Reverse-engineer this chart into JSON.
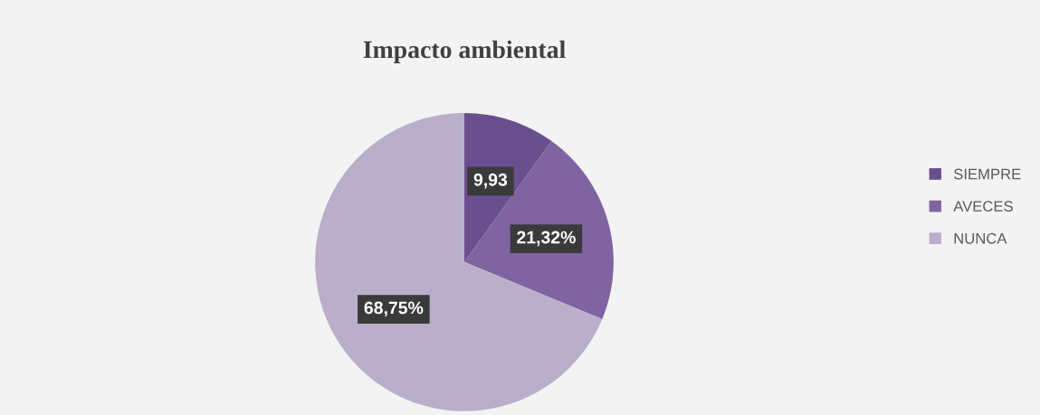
{
  "chart_data": {
    "type": "pie",
    "title": "Impacto ambiental",
    "categories": [
      "SIEMPRE",
      "AVECES",
      "NUNCA"
    ],
    "values": [
      9.93,
      21.32,
      68.75
    ],
    "colors": [
      "#6a4f8f",
      "#8064a2",
      "#b9afcb"
    ],
    "value_labels": [
      "9,93",
      "21,32%",
      "68,75%"
    ],
    "legend": "right"
  }
}
